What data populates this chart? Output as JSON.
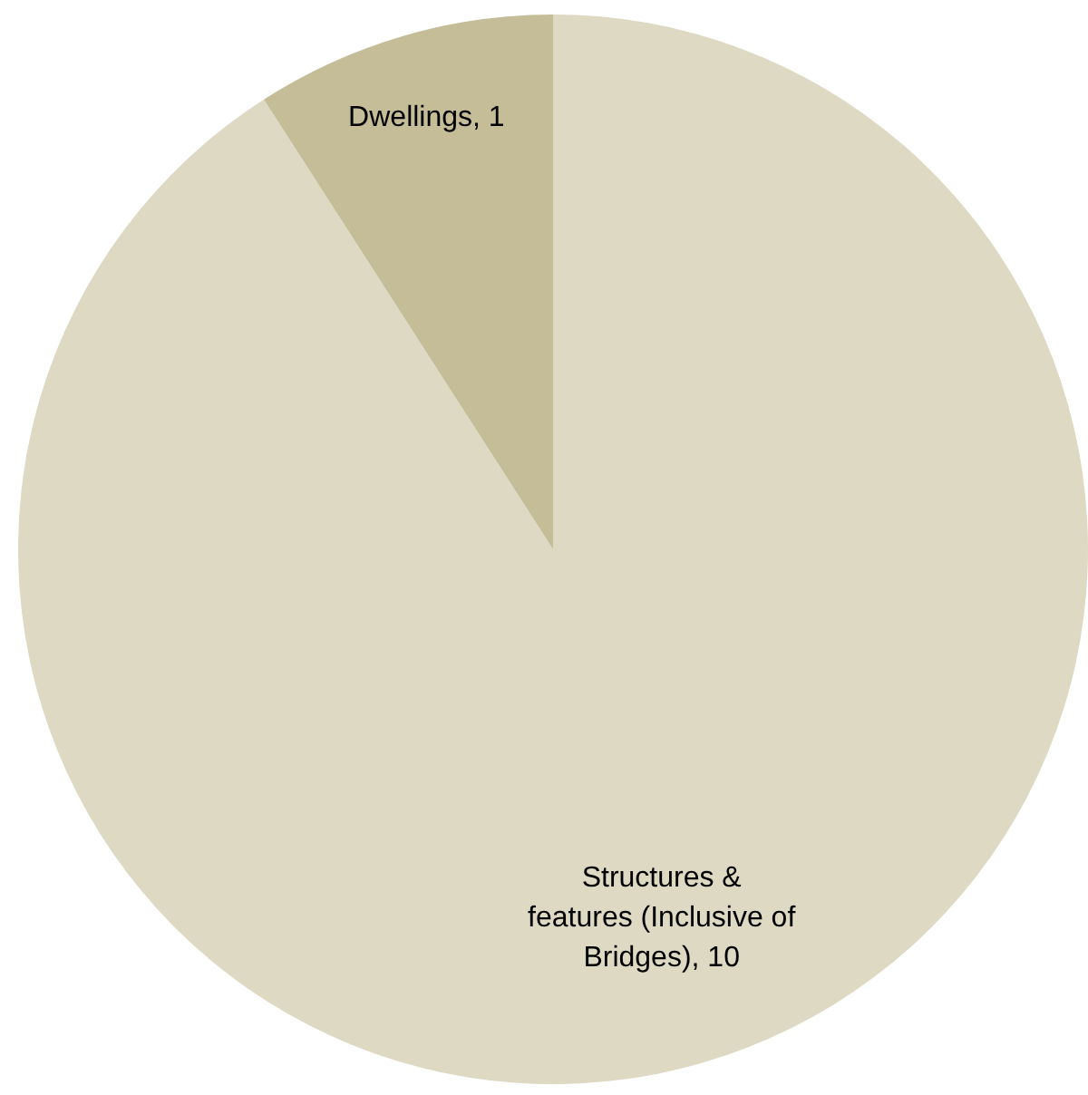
{
  "chart_data": {
    "type": "pie",
    "categories": [
      "Structures & features (Inclusive of Bridges)",
      "Dwellings"
    ],
    "values": [
      10,
      1
    ],
    "colors": [
      "#ddd9c3",
      "#c4bd97"
    ],
    "value_labels": [
      ", 10",
      ", 1"
    ],
    "legend": false
  }
}
